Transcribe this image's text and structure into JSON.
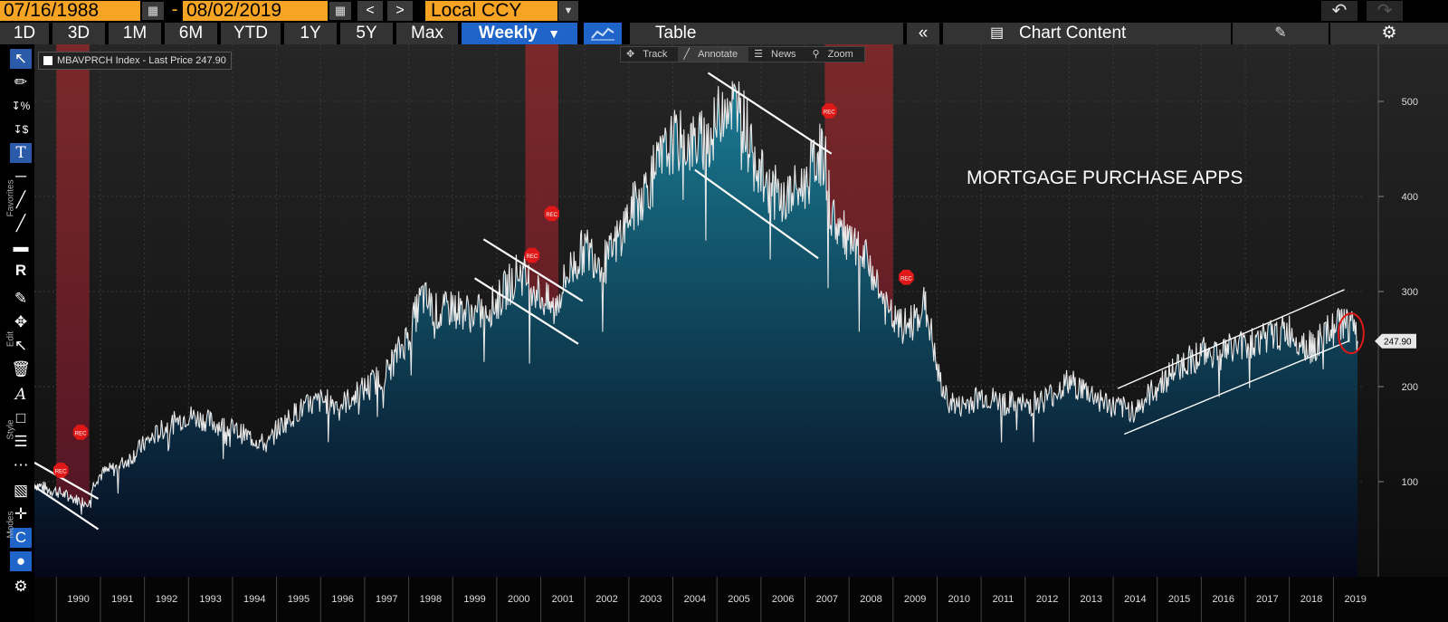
{
  "header": {
    "start_date": "07/16/1988",
    "date_separator": "-",
    "end_date": "08/02/2019",
    "currency": "Local CCY"
  },
  "periods": [
    "1D",
    "3D",
    "1M",
    "6M",
    "YTD",
    "1Y",
    "5Y",
    "Max"
  ],
  "frequency": "Weekly",
  "table_label": "Table",
  "chart_content_label": "Chart Content",
  "mini_toolbar": {
    "track": "Track",
    "annotate": "Annotate",
    "news": "News",
    "zoom": "Zoom"
  },
  "toolbar_labels": {
    "favorites": "Favorites",
    "edit": "Edit",
    "style": "Style",
    "modes": "Modes"
  },
  "legend": "MBAVPRCH Index - Last Price 247.90",
  "colors": {
    "accent_orange": "#f7a323",
    "active_blue": "#1f64c8",
    "recession_band": "#8a2a2a",
    "line": "#e8e8e8",
    "fill_top": "#1a7d95",
    "fill_bottom": "#05071a"
  },
  "chart_data": {
    "type": "area",
    "title": "MORTGAGE PURCHASE APPS",
    "series_name": "MBAVPRCH Index",
    "last_price_label": "247.90",
    "last_price": 247.9,
    "ylim": [
      0,
      560
    ],
    "y_ticks": [
      "100",
      "200",
      "300",
      "400",
      "500"
    ],
    "y_tick_values": [
      100,
      200,
      300,
      400,
      500
    ],
    "x_ticks": [
      "1990",
      "1991",
      "1992",
      "1993",
      "1994",
      "1995",
      "1996",
      "1997",
      "1998",
      "1999",
      "2000",
      "2001",
      "2002",
      "2003",
      "2004",
      "2005",
      "2006",
      "2007",
      "2008",
      "2009",
      "2010",
      "2011",
      "2012",
      "2013",
      "2014",
      "2015",
      "2016",
      "2017",
      "2018",
      "2019"
    ],
    "xlim": [
      1989.5,
      2019.65
    ],
    "x": [
      1989.5,
      1989.8,
      1990.0,
      1990.4,
      1990.7,
      1990.9,
      1991.1,
      1991.4,
      1991.7,
      1992.0,
      1992.5,
      1993.0,
      1993.5,
      1994.0,
      1994.5,
      1994.8,
      1995.0,
      1995.5,
      1996.0,
      1996.5,
      1997.0,
      1997.5,
      1998.0,
      1998.3,
      1998.7,
      1999.0,
      1999.5,
      2000.0,
      2000.5,
      2000.8,
      2001.0,
      2001.3,
      2001.6,
      2002.0,
      2002.5,
      2003.0,
      2003.5,
      2004.0,
      2004.5,
      2004.9,
      2005.2,
      2005.5,
      2005.8,
      2006.0,
      2006.5,
      2007.0,
      2007.3,
      2007.45,
      2007.6,
      2008.0,
      2008.5,
      2008.9,
      2009.2,
      2009.5,
      2009.7,
      2009.85,
      2010.0,
      2010.2,
      2010.5,
      2011.0,
      2011.5,
      2012.0,
      2012.5,
      2013.0,
      2013.5,
      2014.0,
      2014.5,
      2015.0,
      2015.5,
      2016.0,
      2016.5,
      2017.0,
      2017.5,
      2018.0,
      2018.5,
      2019.0,
      2019.3,
      2019.55
    ],
    "values": [
      98,
      92,
      90,
      82,
      78,
      104,
      110,
      115,
      126,
      140,
      158,
      170,
      163,
      155,
      145,
      138,
      155,
      175,
      185,
      182,
      198,
      215,
      255,
      295,
      275,
      285,
      275,
      288,
      322,
      308,
      295,
      280,
      318,
      345,
      330,
      380,
      418,
      458,
      455,
      465,
      505,
      490,
      462,
      420,
      395,
      412,
      445,
      440,
      380,
      350,
      325,
      275,
      262,
      270,
      288,
      260,
      215,
      188,
      178,
      190,
      183,
      180,
      188,
      205,
      192,
      178,
      175,
      200,
      222,
      235,
      238,
      245,
      252,
      258,
      240,
      262,
      270,
      247.9
    ],
    "recession_bands": [
      {
        "name": "1990-1991 recession",
        "start": 1990.0,
        "end": 1990.75
      },
      {
        "name": "2001 recession",
        "start": 2000.65,
        "end": 2001.4
      },
      {
        "name": "2008 recession",
        "start": 2007.45,
        "end": 2009.0
      }
    ],
    "recession_markers": [
      {
        "label": "REC",
        "x": 1990.1,
        "y": 112
      },
      {
        "label": "REC",
        "x": 1990.55,
        "y": 152
      },
      {
        "label": "REC",
        "x": 2000.8,
        "y": 338
      },
      {
        "label": "REC",
        "x": 2001.25,
        "y": 382
      },
      {
        "label": "REC",
        "x": 2007.55,
        "y": 490
      },
      {
        "label": "REC",
        "x": 2009.3,
        "y": 315
      }
    ],
    "trend_lines": [
      {
        "from": [
          1989.5,
          120
        ],
        "to": [
          1990.95,
          82
        ]
      },
      {
        "from": [
          1989.5,
          95
        ],
        "to": [
          1990.95,
          50
        ]
      },
      {
        "from": [
          1999.7,
          355
        ],
        "to": [
          2001.95,
          290
        ]
      },
      {
        "from": [
          1999.5,
          314
        ],
        "to": [
          2001.85,
          245
        ]
      },
      {
        "from": [
          2004.8,
          530
        ],
        "to": [
          2007.6,
          445
        ]
      },
      {
        "from": [
          2004.5,
          428
        ],
        "to": [
          2007.3,
          335
        ]
      },
      {
        "from": [
          2014.1,
          198
        ],
        "to": [
          2019.25,
          302
        ]
      },
      {
        "from": [
          2014.25,
          150
        ],
        "to": [
          2019.35,
          248
        ]
      }
    ],
    "highlight_circle": {
      "x": 2019.4,
      "y": 256
    }
  }
}
